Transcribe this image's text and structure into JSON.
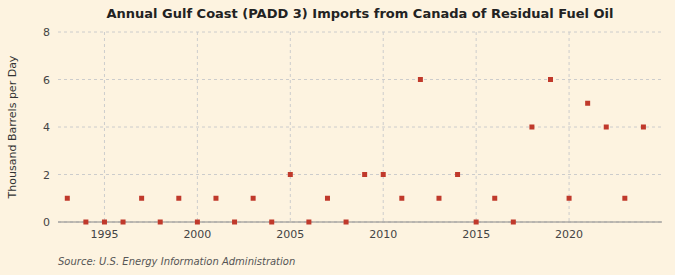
{
  "chart_data": {
    "type": "scatter",
    "title": "Annual Gulf Coast (PADD 3) Imports from Canada of Residual Fuel Oil",
    "ylabel": "Thousand Barrels per Day",
    "annotations": [
      "Source: U.S. Energy Information Administration"
    ],
    "x": [
      1993,
      1994,
      1995,
      1996,
      1997,
      1998,
      1999,
      2000,
      2001,
      2002,
      2003,
      2004,
      2005,
      2006,
      2007,
      2008,
      2009,
      2010,
      2011,
      2012,
      2013,
      2014,
      2015,
      2016,
      2017,
      2018,
      2019,
      2020,
      2021,
      2022,
      2023,
      2024
    ],
    "values": [
      1,
      0,
      0,
      0,
      1,
      0,
      1,
      0,
      1,
      0,
      1,
      0,
      2,
      0,
      1,
      0,
      2,
      2,
      1,
      6,
      1,
      2,
      0,
      1,
      0,
      4,
      6,
      1,
      5,
      4,
      1,
      4
    ],
    "color": "#c0392b",
    "marker": "square",
    "xlim": [
      1992.5,
      2025
    ],
    "ylim": [
      0,
      8
    ],
    "xticks": [
      1995,
      2000,
      2005,
      2010,
      2015,
      2020
    ],
    "yticks": [
      0,
      2,
      4,
      6,
      8
    ],
    "grid": true
  }
}
